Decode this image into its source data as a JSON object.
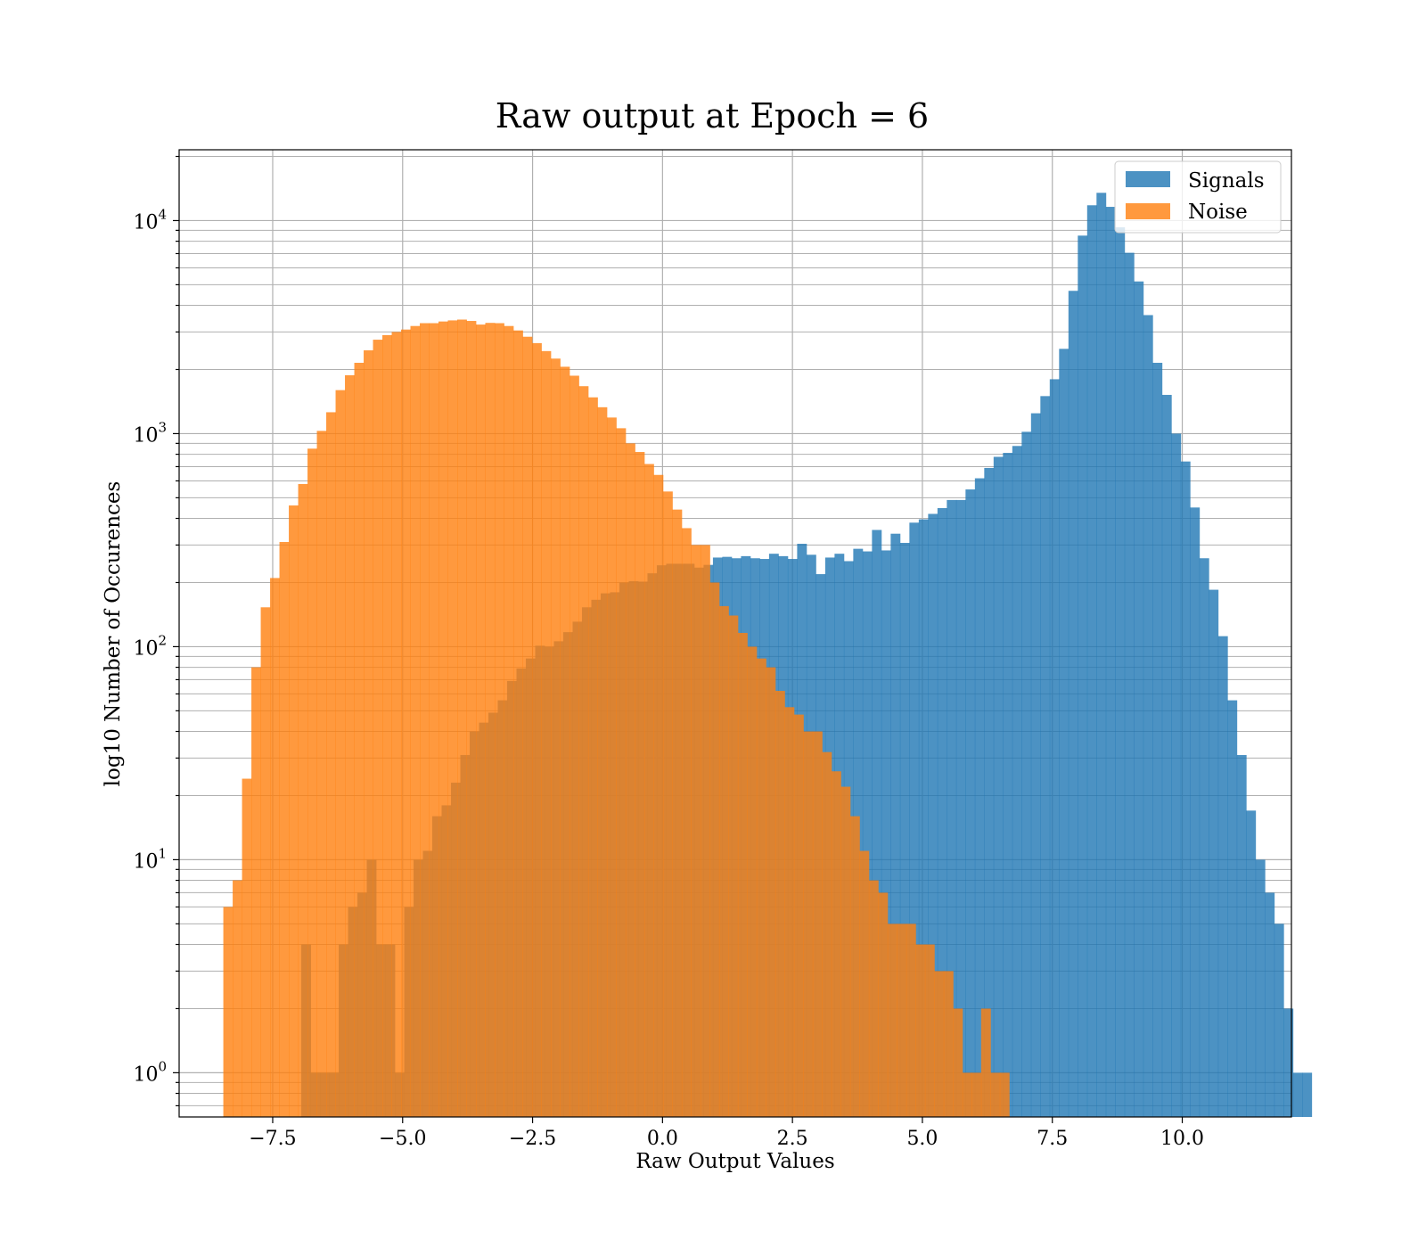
{
  "chart_data": {
    "type": "bar",
    "title": "Raw output at Epoch = 6",
    "xlabel": "Raw Output Values",
    "ylabel": "log10 Number of Occurences",
    "xlim": [
      -9.3,
      12.1
    ],
    "ylim": [
      0.62,
      21500
    ],
    "yscale": "log",
    "grid": true,
    "legend_position": "top-right",
    "x_ticks": [
      -7.5,
      -5.0,
      -2.5,
      0.0,
      2.5,
      5.0,
      7.5,
      10.0
    ],
    "x_tick_labels": [
      "−7.5",
      "−5.0",
      "−2.5",
      "0.0",
      "2.5",
      "5.0",
      "7.5",
      "10.0"
    ],
    "y_ticks": [
      1,
      10,
      100,
      1000,
      10000
    ],
    "y_tick_labels": [
      {
        "base": "10",
        "exp": "0"
      },
      {
        "base": "10",
        "exp": "1"
      },
      {
        "base": "10",
        "exp": "2"
      },
      {
        "base": "10",
        "exp": "3"
      },
      {
        "base": "10",
        "exp": "4"
      }
    ],
    "series": [
      {
        "name": "Signals",
        "color": "#1f77b4",
        "opacity": 0.8,
        "bin_start": -6.95,
        "bin_width": 0.18,
        "values": [
          4,
          1,
          1,
          1,
          4,
          6,
          7,
          10,
          4,
          4,
          1,
          6,
          10,
          11,
          16,
          18,
          23,
          31,
          40,
          44,
          49,
          56,
          69,
          79,
          88,
          101,
          100,
          106,
          117,
          131,
          153,
          166,
          178,
          180,
          200,
          203,
          202,
          221,
          241,
          245,
          245,
          245,
          235,
          242,
          262,
          264,
          260,
          266,
          260,
          258,
          273,
          266,
          258,
          304,
          270,
          219,
          262,
          273,
          252,
          288,
          280,
          353,
          283,
          339,
          307,
          382,
          396,
          420,
          447,
          488,
          488,
          547,
          617,
          690,
          778,
          812,
          875,
          1020,
          1246,
          1500,
          1800,
          2500,
          4680,
          8500,
          11800,
          13500,
          11600,
          9300,
          7060,
          5180,
          3600,
          2150,
          1520,
          1000,
          740,
          450,
          260,
          185,
          112,
          56,
          31,
          17,
          10,
          7,
          5,
          2,
          1,
          1
        ]
      },
      {
        "name": "Noise",
        "color": "#ff7f0e",
        "opacity": 0.8,
        "bin_start": -8.45,
        "bin_width": 0.18,
        "values": [
          6,
          8,
          24,
          80,
          153,
          210,
          310,
          460,
          580,
          850,
          1030,
          1260,
          1600,
          1880,
          2150,
          2460,
          2760,
          2900,
          3000,
          3080,
          3200,
          3300,
          3300,
          3360,
          3400,
          3430,
          3380,
          3250,
          3310,
          3300,
          3200,
          3050,
          2850,
          2660,
          2440,
          2250,
          2060,
          1870,
          1670,
          1480,
          1330,
          1190,
          1060,
          900,
          820,
          720,
          640,
          535,
          440,
          360,
          300,
          300,
          200,
          155,
          140,
          116,
          100,
          88,
          80,
          62,
          52,
          48,
          40,
          40,
          32,
          26,
          22,
          16,
          11,
          8,
          7,
          5,
          5,
          5,
          4,
          4,
          3,
          3,
          2,
          1,
          1,
          2,
          1,
          1
        ]
      }
    ],
    "legend": [
      {
        "label": "Signals",
        "color": "#1f77b4"
      },
      {
        "label": "Noise",
        "color": "#ff7f0e"
      }
    ]
  }
}
